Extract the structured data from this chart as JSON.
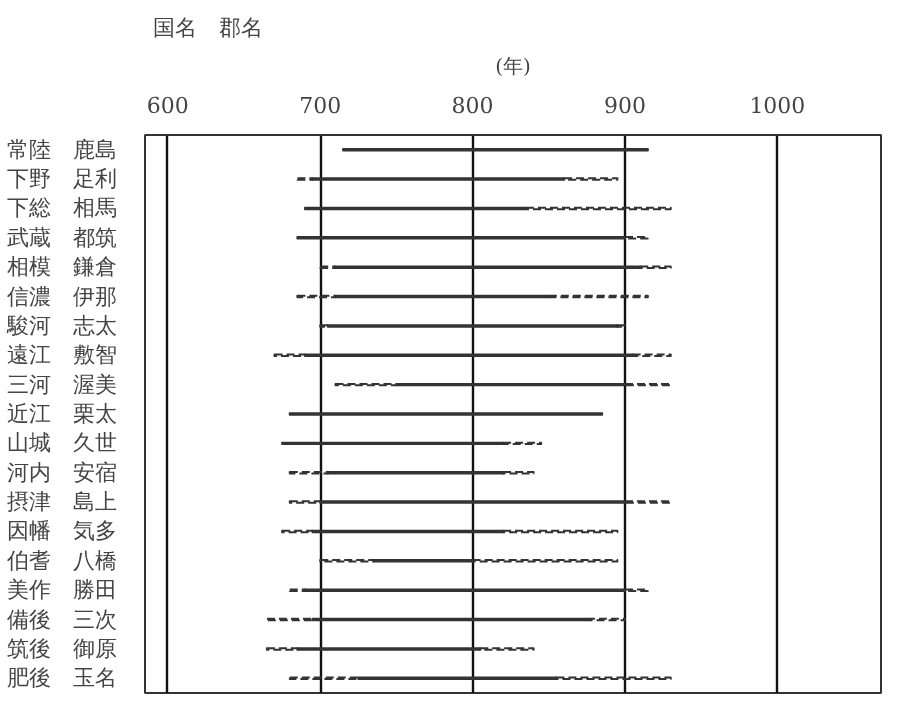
{
  "chart_data": {
    "type": "bar",
    "orientation": "horizontal",
    "xlabel": "(年)",
    "ylabel": "国名　郡名",
    "categories": [
      "常陸　鹿島",
      "下野　足利",
      "下総　相馬",
      "武蔵　都筑",
      "相模　鎌倉",
      "信濃　伊那",
      "駿河　志太",
      "遠江　敷智",
      "三河　渥美",
      "近江　栗太",
      "山城　久世",
      "河内　安宿",
      "摂津　島上",
      "因幡　気多",
      "伯耆　八橋",
      "美作　勝田",
      "備後　三次",
      "筑後　御原",
      "肥後　玉名"
    ],
    "series": [
      {
        "color": "#333333",
        "line_style": "dashed",
        "base": [
          null,
          685,
          null,
          null,
          700,
          685,
          700,
          670,
          710,
          null,
          null,
          680,
          680,
          675,
          700,
          680,
          665,
          665,
          680
        ],
        "values": [
          null,
          10,
          null,
          null,
          10,
          25,
          5,
          20,
          40,
          null,
          null,
          25,
          20,
          20,
          35,
          10,
          30,
          20,
          45
        ]
      },
      {
        "color": "#333333",
        "line_style": "solid",
        "base": [
          715,
          695,
          690,
          685,
          710,
          710,
          705,
          690,
          750,
          680,
          675,
          705,
          700,
          695,
          735,
          690,
          695,
          685,
          725
        ],
        "values": [
          200,
          165,
          145,
          215,
          200,
          140,
          190,
          215,
          150,
          205,
          145,
          115,
          200,
          125,
          65,
          210,
          180,
          120,
          130
        ]
      },
      {
        "color": "#333333",
        "line_style": "dashed",
        "base": [
          null,
          860,
          835,
          900,
          910,
          850,
          895,
          905,
          900,
          null,
          820,
          820,
          900,
          820,
          800,
          900,
          875,
          805,
          855
        ],
        "values": [
          null,
          35,
          95,
          15,
          20,
          65,
          5,
          25,
          30,
          null,
          25,
          20,
          30,
          75,
          95,
          15,
          25,
          35,
          75
        ]
      }
    ],
    "xlim": [
      585,
      1068
    ],
    "xticks": [
      600,
      700,
      800,
      900,
      1000
    ],
    "grid": "x"
  }
}
